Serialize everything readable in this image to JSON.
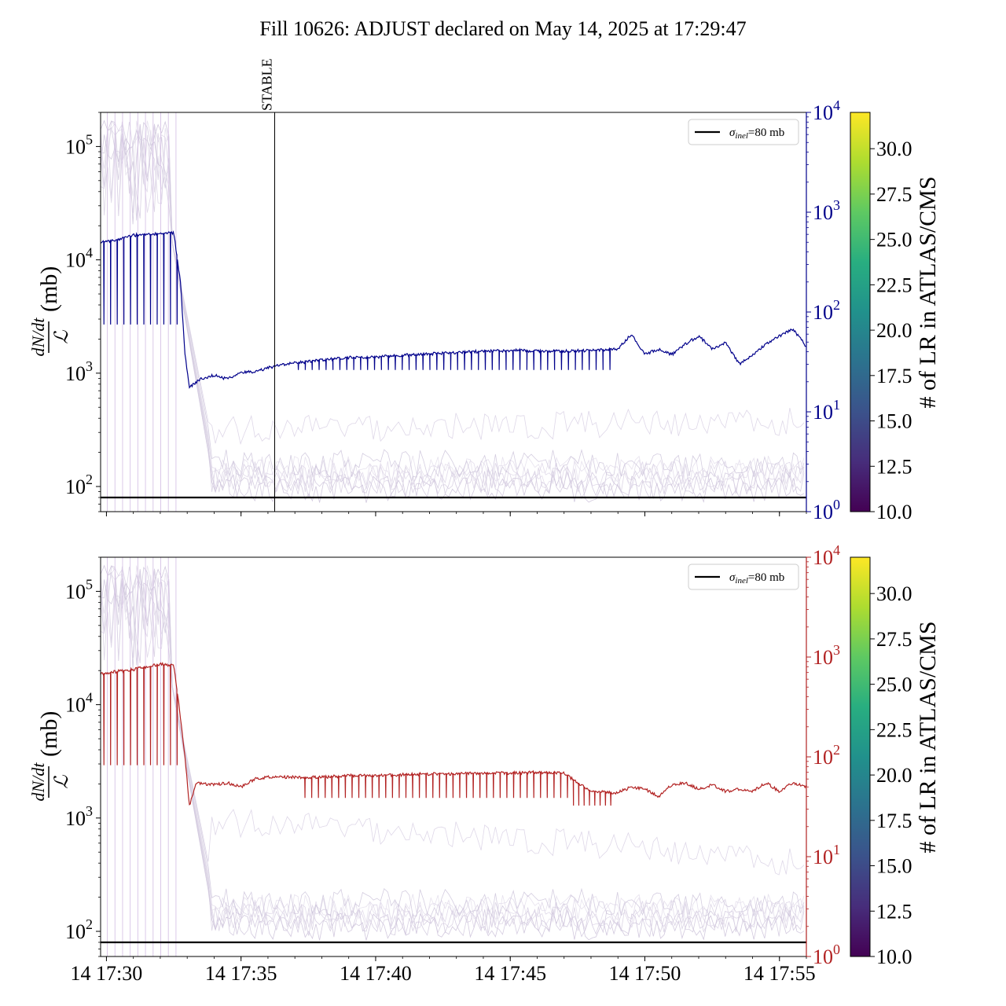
{
  "figure": {
    "title": "Fill 10626: ADJUST declared on May 14, 2025 at 17:29:47"
  },
  "chart_data": [
    {
      "type": "line",
      "panel": "top",
      "x_axis": {
        "kind": "time",
        "range": [
          "2025-05-14T17:29:47",
          "2025-05-14T17:56:00"
        ],
        "ticks": [
          "14 17:30",
          "14 17:35",
          "14 17:40",
          "14 17:45",
          "14 17:50",
          "14 17:55"
        ],
        "tick_labels_shown": false
      },
      "y_axis_left": {
        "label": "dN/dt / ℒ (mb)",
        "scale": "log",
        "range": [
          60,
          200000
        ],
        "ticks": [
          100,
          1000,
          10000,
          100000
        ],
        "tick_labels": [
          "10^2",
          "10^3",
          "10^4",
          "10^5"
        ]
      },
      "y_axis_right": {
        "scale": "log",
        "range": [
          1,
          10000
        ],
        "ticks": [
          1,
          10,
          100,
          1000,
          10000
        ],
        "tick_labels": [
          "10^0",
          "10^1",
          "10^2",
          "10^3",
          "10^4"
        ],
        "color": "#00008b"
      },
      "legend": {
        "position": "upper-right",
        "entries": [
          {
            "label": "σinel=80 mb",
            "color": "#000000"
          }
        ]
      },
      "reference_line": {
        "y": 80,
        "color": "#000000"
      },
      "annotation": {
        "text": "STABLE",
        "x": "2025-05-14T17:36:15"
      },
      "main_series": {
        "color": "#00008b",
        "points": [
          [
            "17:29:47",
            20000
          ],
          [
            "17:30:30",
            21500
          ],
          [
            "17:31:00",
            23500
          ],
          [
            "17:31:30",
            24000
          ],
          [
            "17:32:00",
            24500
          ],
          [
            "17:32:30",
            25000
          ],
          [
            "17:32:45",
            8000
          ],
          [
            "17:32:55",
            1500
          ],
          [
            "17:33:05",
            700
          ],
          [
            "17:33:30",
            850
          ],
          [
            "17:34:00",
            930
          ],
          [
            "17:34:30",
            850
          ],
          [
            "17:35:00",
            1000
          ],
          [
            "17:35:30",
            1000
          ],
          [
            "17:36:15",
            1150
          ],
          [
            "17:37:00",
            1230
          ],
          [
            "17:38:00",
            1330
          ],
          [
            "17:39:00",
            1400
          ],
          [
            "17:40:00",
            1420
          ],
          [
            "17:41:00",
            1470
          ],
          [
            "17:42:00",
            1520
          ],
          [
            "17:43:00",
            1570
          ],
          [
            "17:44:00",
            1620
          ],
          [
            "17:45:00",
            1650
          ],
          [
            "17:46:00",
            1630
          ],
          [
            "17:47:00",
            1620
          ],
          [
            "17:48:00",
            1650
          ],
          [
            "17:49:00",
            1700
          ],
          [
            "17:49:30",
            2400
          ],
          [
            "17:50:00",
            1500
          ],
          [
            "17:50:30",
            1700
          ],
          [
            "17:51:00",
            1500
          ],
          [
            "17:51:30",
            1900
          ],
          [
            "17:52:00",
            2300
          ],
          [
            "17:52:30",
            1700
          ],
          [
            "17:53:00",
            2000
          ],
          [
            "17:53:30",
            1200
          ],
          [
            "17:54:00",
            1500
          ],
          [
            "17:54:30",
            1900
          ],
          [
            "17:55:00",
            2300
          ],
          [
            "17:55:30",
            2700
          ],
          [
            "17:56:00",
            1800
          ]
        ],
        "dips": [
          {
            "from": "17:29:47",
            "to": "17:32:45",
            "count": 12,
            "min": 3000
          },
          {
            "from": "17:37:00",
            "to": "17:48:50",
            "count": 46,
            "min": 1050
          }
        ]
      },
      "background_series": {
        "count": 8,
        "color_scale": "viridis",
        "late_values": [
          95,
          105,
          115,
          125,
          130,
          140,
          160,
          180
        ]
      },
      "colorbar": {
        "label": "# of LR in ATLAS/CMS",
        "range": [
          10.0,
          32.0
        ],
        "ticks": [
          10.0,
          12.5,
          15.0,
          17.5,
          20.0,
          22.5,
          25.0,
          27.5,
          30.0
        ],
        "tick_labels": [
          "10.0",
          "12.5",
          "15.0",
          "17.5",
          "20.0",
          "22.5",
          "25.0",
          "27.5",
          "30.0"
        ]
      }
    },
    {
      "type": "line",
      "panel": "bottom",
      "x_axis": {
        "kind": "time",
        "range": [
          "2025-05-14T17:29:47",
          "2025-05-14T17:56:00"
        ],
        "ticks": [
          "14 17:30",
          "14 17:35",
          "14 17:40",
          "14 17:45",
          "14 17:50",
          "14 17:55"
        ],
        "tick_labels": [
          "14 17:30",
          "14 17:35",
          "14 17:40",
          "14 17:45",
          "14 17:50",
          "14 17:55"
        ]
      },
      "y_axis_left": {
        "label": "dN/dt / ℒ (mb)",
        "scale": "log",
        "range": [
          60,
          200000
        ],
        "ticks": [
          100,
          1000,
          10000,
          100000
        ],
        "tick_labels": [
          "10^2",
          "10^3",
          "10^4",
          "10^5"
        ]
      },
      "y_axis_right": {
        "scale": "log",
        "range": [
          1,
          10000
        ],
        "ticks": [
          1,
          10,
          100,
          1000,
          10000
        ],
        "tick_labels": [
          "10^0",
          "10^1",
          "10^2",
          "10^3",
          "10^4"
        ],
        "color": "#b22222"
      },
      "legend": {
        "position": "upper-right",
        "entries": [
          {
            "label": "σinel=80 mb",
            "color": "#000000"
          }
        ]
      },
      "reference_line": {
        "y": 80,
        "color": "#000000"
      },
      "main_series": {
        "color": "#b22222",
        "points": [
          [
            "17:29:47",
            27000
          ],
          [
            "17:30:30",
            29000
          ],
          [
            "17:31:00",
            30000
          ],
          [
            "17:31:30",
            32000
          ],
          [
            "17:32:00",
            34000
          ],
          [
            "17:32:30",
            33000
          ],
          [
            "17:32:45",
            10000
          ],
          [
            "17:32:55",
            4000
          ],
          [
            "17:33:05",
            1300
          ],
          [
            "17:33:20",
            2200
          ],
          [
            "17:34:00",
            2100
          ],
          [
            "17:34:30",
            2200
          ],
          [
            "17:35:00",
            2000
          ],
          [
            "17:35:30",
            2400
          ],
          [
            "17:36:00",
            2500
          ],
          [
            "17:37:00",
            2500
          ],
          [
            "17:38:00",
            2500
          ],
          [
            "17:39:00",
            2600
          ],
          [
            "17:40:00",
            2600
          ],
          [
            "17:41:00",
            2650
          ],
          [
            "17:42:00",
            2700
          ],
          [
            "17:43:00",
            2700
          ],
          [
            "17:44:00",
            2750
          ],
          [
            "17:45:00",
            2750
          ],
          [
            "17:46:00",
            2800
          ],
          [
            "17:47:00",
            2750
          ],
          [
            "17:47:30",
            2200
          ],
          [
            "17:48:00",
            1800
          ],
          [
            "17:49:00",
            1750
          ],
          [
            "17:49:30",
            2000
          ],
          [
            "17:50:00",
            1900
          ],
          [
            "17:50:30",
            1600
          ],
          [
            "17:51:00",
            2100
          ],
          [
            "17:51:30",
            2200
          ],
          [
            "17:52:00",
            1900
          ],
          [
            "17:52:30",
            2100
          ],
          [
            "17:53:00",
            1800
          ],
          [
            "17:53:30",
            1900
          ],
          [
            "17:54:00",
            1800
          ],
          [
            "17:54:30",
            2200
          ],
          [
            "17:55:00",
            1800
          ],
          [
            "17:55:30",
            2200
          ],
          [
            "17:56:00",
            2000
          ]
        ],
        "dips": [
          {
            "from": "17:29:47",
            "to": "17:32:45",
            "count": 12,
            "min": 3300
          },
          {
            "from": "17:37:15",
            "to": "17:47:15",
            "count": 40,
            "min": 1550
          },
          {
            "from": "17:47:15",
            "to": "17:48:50",
            "count": 8,
            "min": 1300
          }
        ]
      },
      "background_series": {
        "count": 8,
        "color_scale": "viridis",
        "late_values": [
          110,
          120,
          130,
          140,
          150,
          160,
          180,
          200
        ]
      },
      "colorbar": {
        "label": "# of LR in ATLAS/CMS",
        "range": [
          10.0,
          32.0
        ],
        "ticks": [
          10.0,
          12.5,
          15.0,
          17.5,
          20.0,
          22.5,
          25.0,
          27.5,
          30.0
        ],
        "tick_labels": [
          "10.0",
          "12.5",
          "15.0",
          "17.5",
          "20.0",
          "22.5",
          "25.0",
          "27.5",
          "30.0"
        ]
      }
    }
  ]
}
